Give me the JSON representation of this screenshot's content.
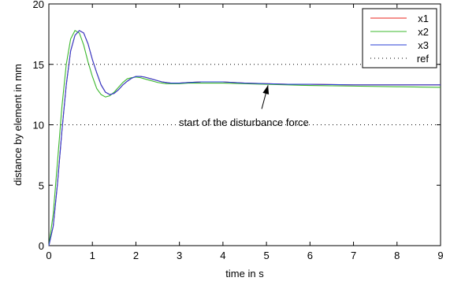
{
  "chart_data": {
    "type": "line",
    "xlabel": "time in s",
    "ylabel": "distance by element in mm",
    "xlim": [
      0,
      9
    ],
    "ylim": [
      0,
      20
    ],
    "x_ticks": [
      0,
      1,
      2,
      3,
      4,
      5,
      6,
      7,
      8,
      9
    ],
    "y_ticks": [
      0,
      5,
      10,
      15,
      20
    ],
    "grid": false,
    "legend_position": "top-right",
    "series": [
      {
        "name": "x1",
        "color": "#e8251e",
        "line_style": "solid",
        "x": [
          0,
          0.1,
          0.2,
          0.3,
          0.4,
          0.5,
          0.6,
          0.7,
          0.8,
          0.9,
          1.0,
          1.1,
          1.2,
          1.3,
          1.4,
          1.5,
          1.6,
          1.7,
          1.8,
          1.9,
          2.0,
          2.1,
          2.2,
          2.3,
          2.4,
          2.5,
          2.6,
          2.7,
          2.8,
          3.0,
          3.2,
          3.5,
          4.0,
          4.5,
          5.0,
          5.5,
          6.0,
          7.0,
          8.0,
          9.0
        ],
        "y": [
          0,
          1.6,
          5.2,
          9.5,
          13.3,
          16.1,
          17.4,
          17.8,
          17.6,
          16.7,
          15.4,
          14.3,
          13.3,
          12.7,
          12.5,
          12.6,
          12.9,
          13.3,
          13.6,
          13.85,
          14.0,
          14.0,
          13.95,
          13.85,
          13.75,
          13.65,
          13.55,
          13.5,
          13.45,
          13.45,
          13.5,
          13.55,
          13.55,
          13.45,
          13.4,
          13.35,
          13.35,
          13.3,
          13.3,
          13.3
        ]
      },
      {
        "name": "x2",
        "color": "#3cb82e",
        "line_style": "solid",
        "x": [
          0,
          0.1,
          0.2,
          0.3,
          0.4,
          0.5,
          0.6,
          0.7,
          0.8,
          0.9,
          1.0,
          1.1,
          1.2,
          1.3,
          1.4,
          1.5,
          1.6,
          1.7,
          1.8,
          1.9,
          2.0,
          2.1,
          2.2,
          2.3,
          2.4,
          2.5,
          2.6,
          2.7,
          2.8,
          3.0,
          3.2,
          3.5,
          4.0,
          4.5,
          5.0,
          5.5,
          6.0,
          7.0,
          8.0,
          9.0
        ],
        "y": [
          0,
          2.6,
          7.0,
          11.5,
          15.0,
          17.1,
          17.8,
          17.6,
          16.6,
          15.2,
          14.0,
          13.0,
          12.5,
          12.3,
          12.4,
          12.7,
          13.1,
          13.5,
          13.8,
          13.9,
          13.95,
          13.9,
          13.8,
          13.7,
          13.6,
          13.5,
          13.45,
          13.4,
          13.4,
          13.4,
          13.45,
          13.45,
          13.45,
          13.4,
          13.35,
          13.3,
          13.25,
          13.2,
          13.15,
          13.1
        ]
      },
      {
        "name": "x3",
        "color": "#2a3fd6",
        "line_style": "solid",
        "x": [
          0,
          0.1,
          0.2,
          0.3,
          0.4,
          0.5,
          0.6,
          0.7,
          0.8,
          0.9,
          1.0,
          1.1,
          1.2,
          1.3,
          1.4,
          1.5,
          1.6,
          1.7,
          1.8,
          1.9,
          2.0,
          2.1,
          2.2,
          2.3,
          2.4,
          2.5,
          2.6,
          2.7,
          2.8,
          3.0,
          3.2,
          3.5,
          4.0,
          4.5,
          5.0,
          5.5,
          6.0,
          7.0,
          8.0,
          9.0
        ],
        "y": [
          0,
          1.6,
          5.2,
          9.5,
          13.3,
          16.1,
          17.4,
          17.8,
          17.6,
          16.7,
          15.4,
          14.3,
          13.3,
          12.7,
          12.5,
          12.6,
          12.9,
          13.3,
          13.6,
          13.85,
          14.0,
          14.0,
          13.95,
          13.85,
          13.75,
          13.65,
          13.55,
          13.5,
          13.45,
          13.45,
          13.5,
          13.55,
          13.55,
          13.45,
          13.4,
          13.35,
          13.35,
          13.3,
          13.3,
          13.3
        ]
      },
      {
        "name": "ref",
        "color": "#000000",
        "line_style": "dotted",
        "x": [
          0,
          9
        ],
        "y": [
          15,
          15
        ]
      }
    ],
    "reference_lines": [
      {
        "y": 10,
        "color": "#000000",
        "line_style": "dotted"
      }
    ],
    "annotations": [
      {
        "text": "start of the disturbance force",
        "arrow_to": [
          5.0,
          13.4
        ]
      }
    ]
  }
}
